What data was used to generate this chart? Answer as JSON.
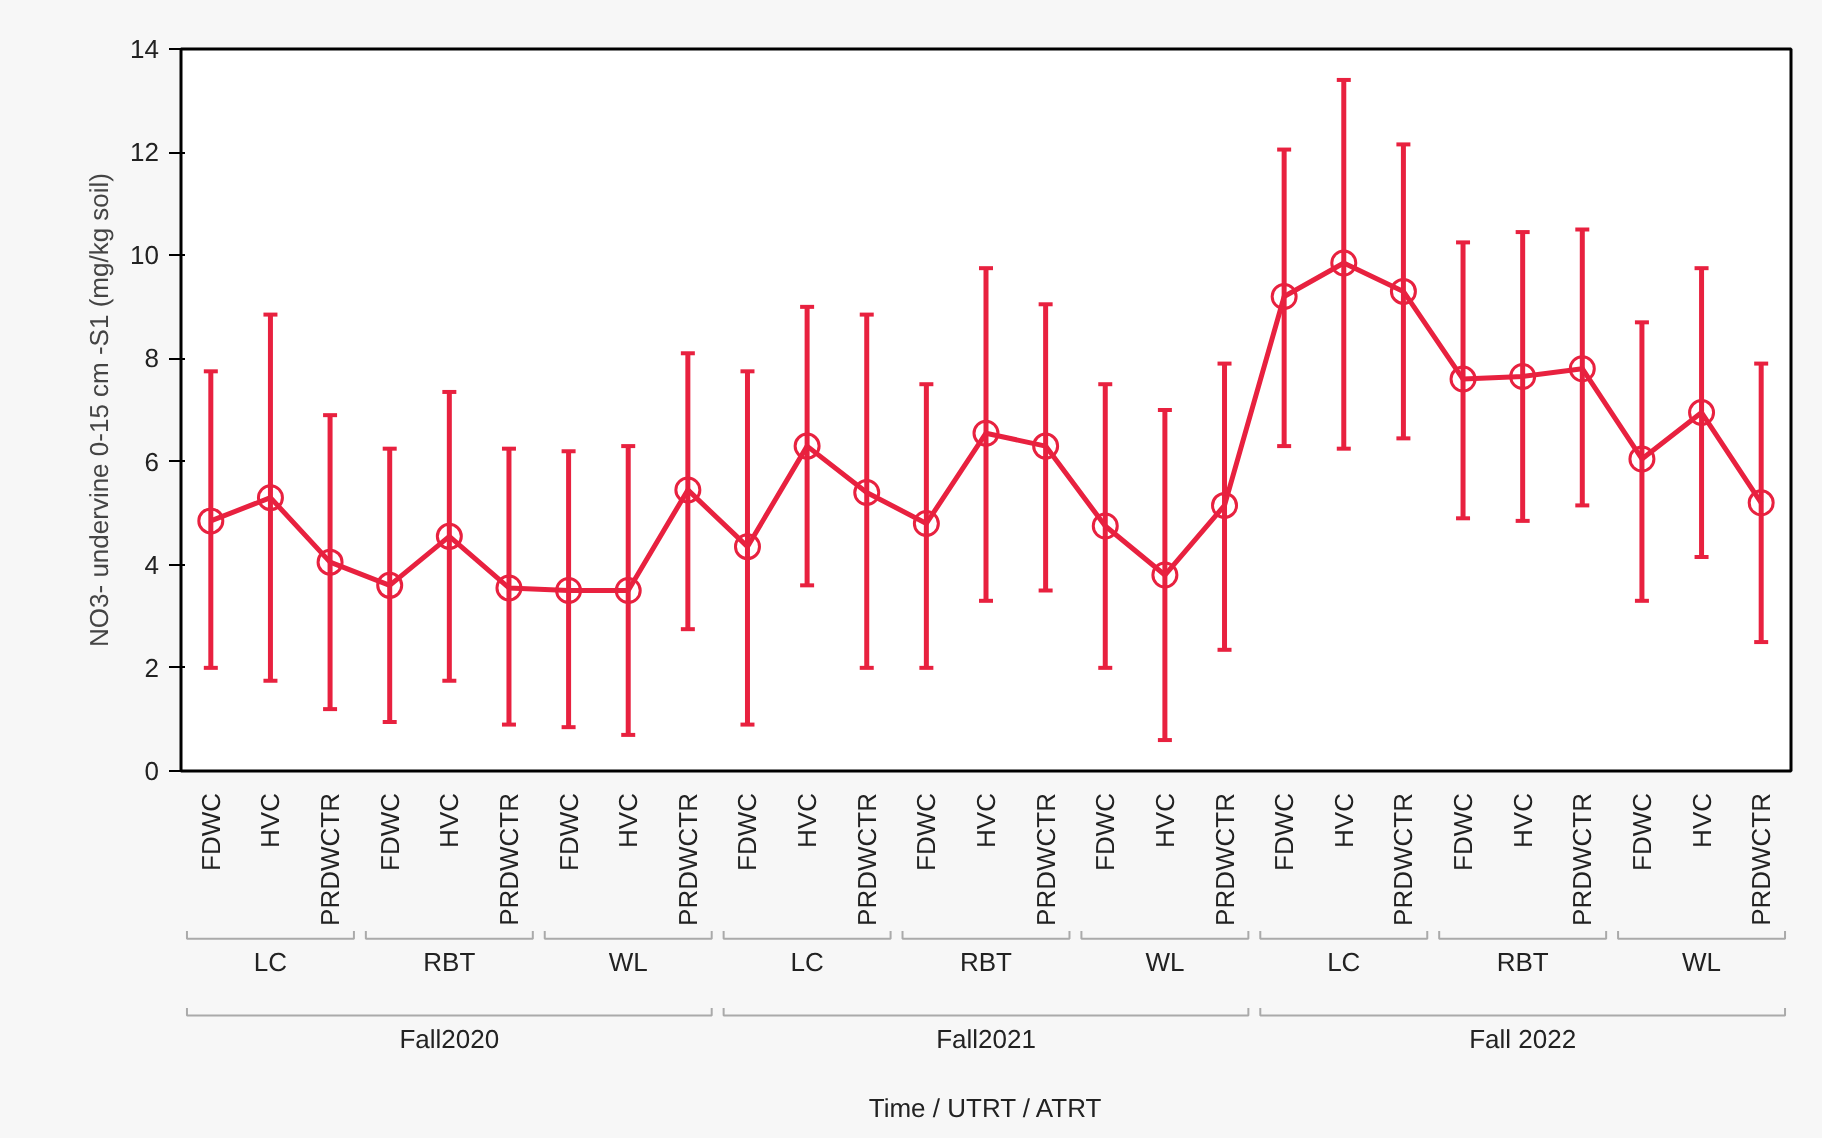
{
  "chart_data": {
    "type": "line",
    "ylabel": "NO3- undervine 0-15 cm -S1 (mg/kg soil)",
    "categories": [
      "FDWC",
      "HVC",
      "PRDWCTR",
      "FDWC",
      "HVC",
      "PRDWCTR",
      "FDWC",
      "HVC",
      "PRDWCTR",
      "FDWC",
      "HVC",
      "PRDWCTR",
      "FDWC",
      "HVC",
      "PRDWCTR",
      "FDWC",
      "HVC",
      "PRDWCTR",
      "FDWC",
      "HVC",
      "PRDWCTR",
      "FDWC",
      "HVC",
      "PRDWCTR",
      "FDWC",
      "HVC",
      "PRDWCTR"
    ],
    "series": [
      {
        "color": "#e8213f",
        "values": [
          4.85,
          5.3,
          4.05,
          3.6,
          4.55,
          3.55,
          3.5,
          3.5,
          5.45,
          4.35,
          6.3,
          5.4,
          4.8,
          6.55,
          6.3,
          4.75,
          3.8,
          5.15,
          9.2,
          9.85,
          9.3,
          7.6,
          7.65,
          7.8,
          6.05,
          6.95,
          5.2
        ],
        "errors": [
          [
            2.0,
            7.75
          ],
          [
            1.75,
            8.85
          ],
          [
            1.2,
            6.9
          ],
          [
            0.95,
            6.25
          ],
          [
            1.75,
            7.35
          ],
          [
            0.9,
            6.25
          ],
          [
            0.85,
            6.2
          ],
          [
            0.7,
            6.3
          ],
          [
            2.75,
            8.1
          ],
          [
            0.9,
            7.75
          ],
          [
            3.6,
            9.0
          ],
          [
            2.0,
            8.85
          ],
          [
            2.0,
            7.5
          ],
          [
            3.3,
            9.75
          ],
          [
            3.5,
            9.05
          ],
          [
            2.0,
            7.5
          ],
          [
            0.6,
            7.0
          ],
          [
            2.35,
            7.9
          ],
          [
            6.3,
            12.05
          ],
          [
            6.25,
            13.4
          ],
          [
            6.45,
            12.15
          ],
          [
            4.9,
            10.25
          ],
          [
            4.85,
            10.45
          ],
          [
            5.15,
            10.5
          ],
          [
            3.3,
            8.7
          ],
          [
            4.15,
            9.75
          ],
          [
            2.5,
            7.9
          ]
        ]
      }
    ],
    "annotations": [
      "LC",
      "RBT",
      "WL",
      "LC",
      "RBT",
      "WL",
      "LC",
      "RBT",
      "WL",
      "Fall2020",
      "Fall2021",
      "Fall 2022",
      "Time / UTRT / ATRT"
    ],
    "ylim": [
      0,
      14
    ],
    "yticks": [
      0,
      2,
      4,
      6,
      8,
      10,
      12,
      14
    ],
    "grid": false,
    "marker": "circle",
    "line_style": "solid"
  }
}
